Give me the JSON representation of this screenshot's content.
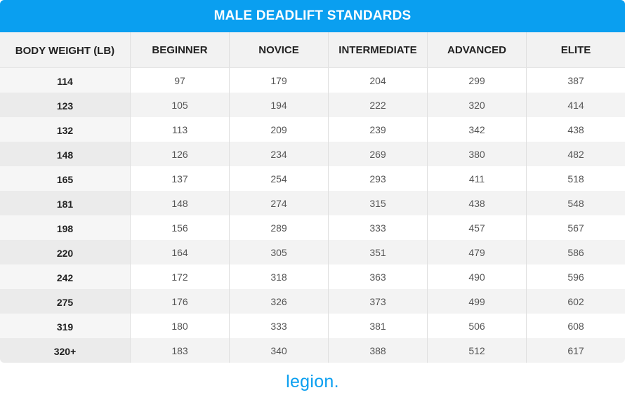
{
  "header": {
    "title": "MALE DEADLIFT STANDARDS"
  },
  "table": {
    "columns": [
      "BODY WEIGHT (LB)",
      "BEGINNER",
      "NOVICE",
      "INTERMEDIATE",
      "ADVANCED",
      "ELITE"
    ],
    "rows": [
      [
        114,
        97,
        179,
        204,
        299,
        387
      ],
      [
        123,
        105,
        194,
        222,
        320,
        414
      ],
      [
        132,
        113,
        209,
        239,
        342,
        438
      ],
      [
        148,
        126,
        234,
        269,
        380,
        482
      ],
      [
        165,
        137,
        254,
        293,
        411,
        518
      ],
      [
        181,
        148,
        274,
        315,
        438,
        548
      ],
      [
        198,
        156,
        289,
        333,
        457,
        567
      ],
      [
        220,
        164,
        305,
        351,
        479,
        586
      ],
      [
        242,
        172,
        318,
        363,
        490,
        596
      ],
      [
        275,
        176,
        326,
        373,
        499,
        602
      ],
      [
        319,
        180,
        333,
        381,
        506,
        608
      ],
      [
        "320+",
        183,
        340,
        388,
        512,
        617
      ]
    ]
  },
  "footer": {
    "logo": "legion."
  }
}
